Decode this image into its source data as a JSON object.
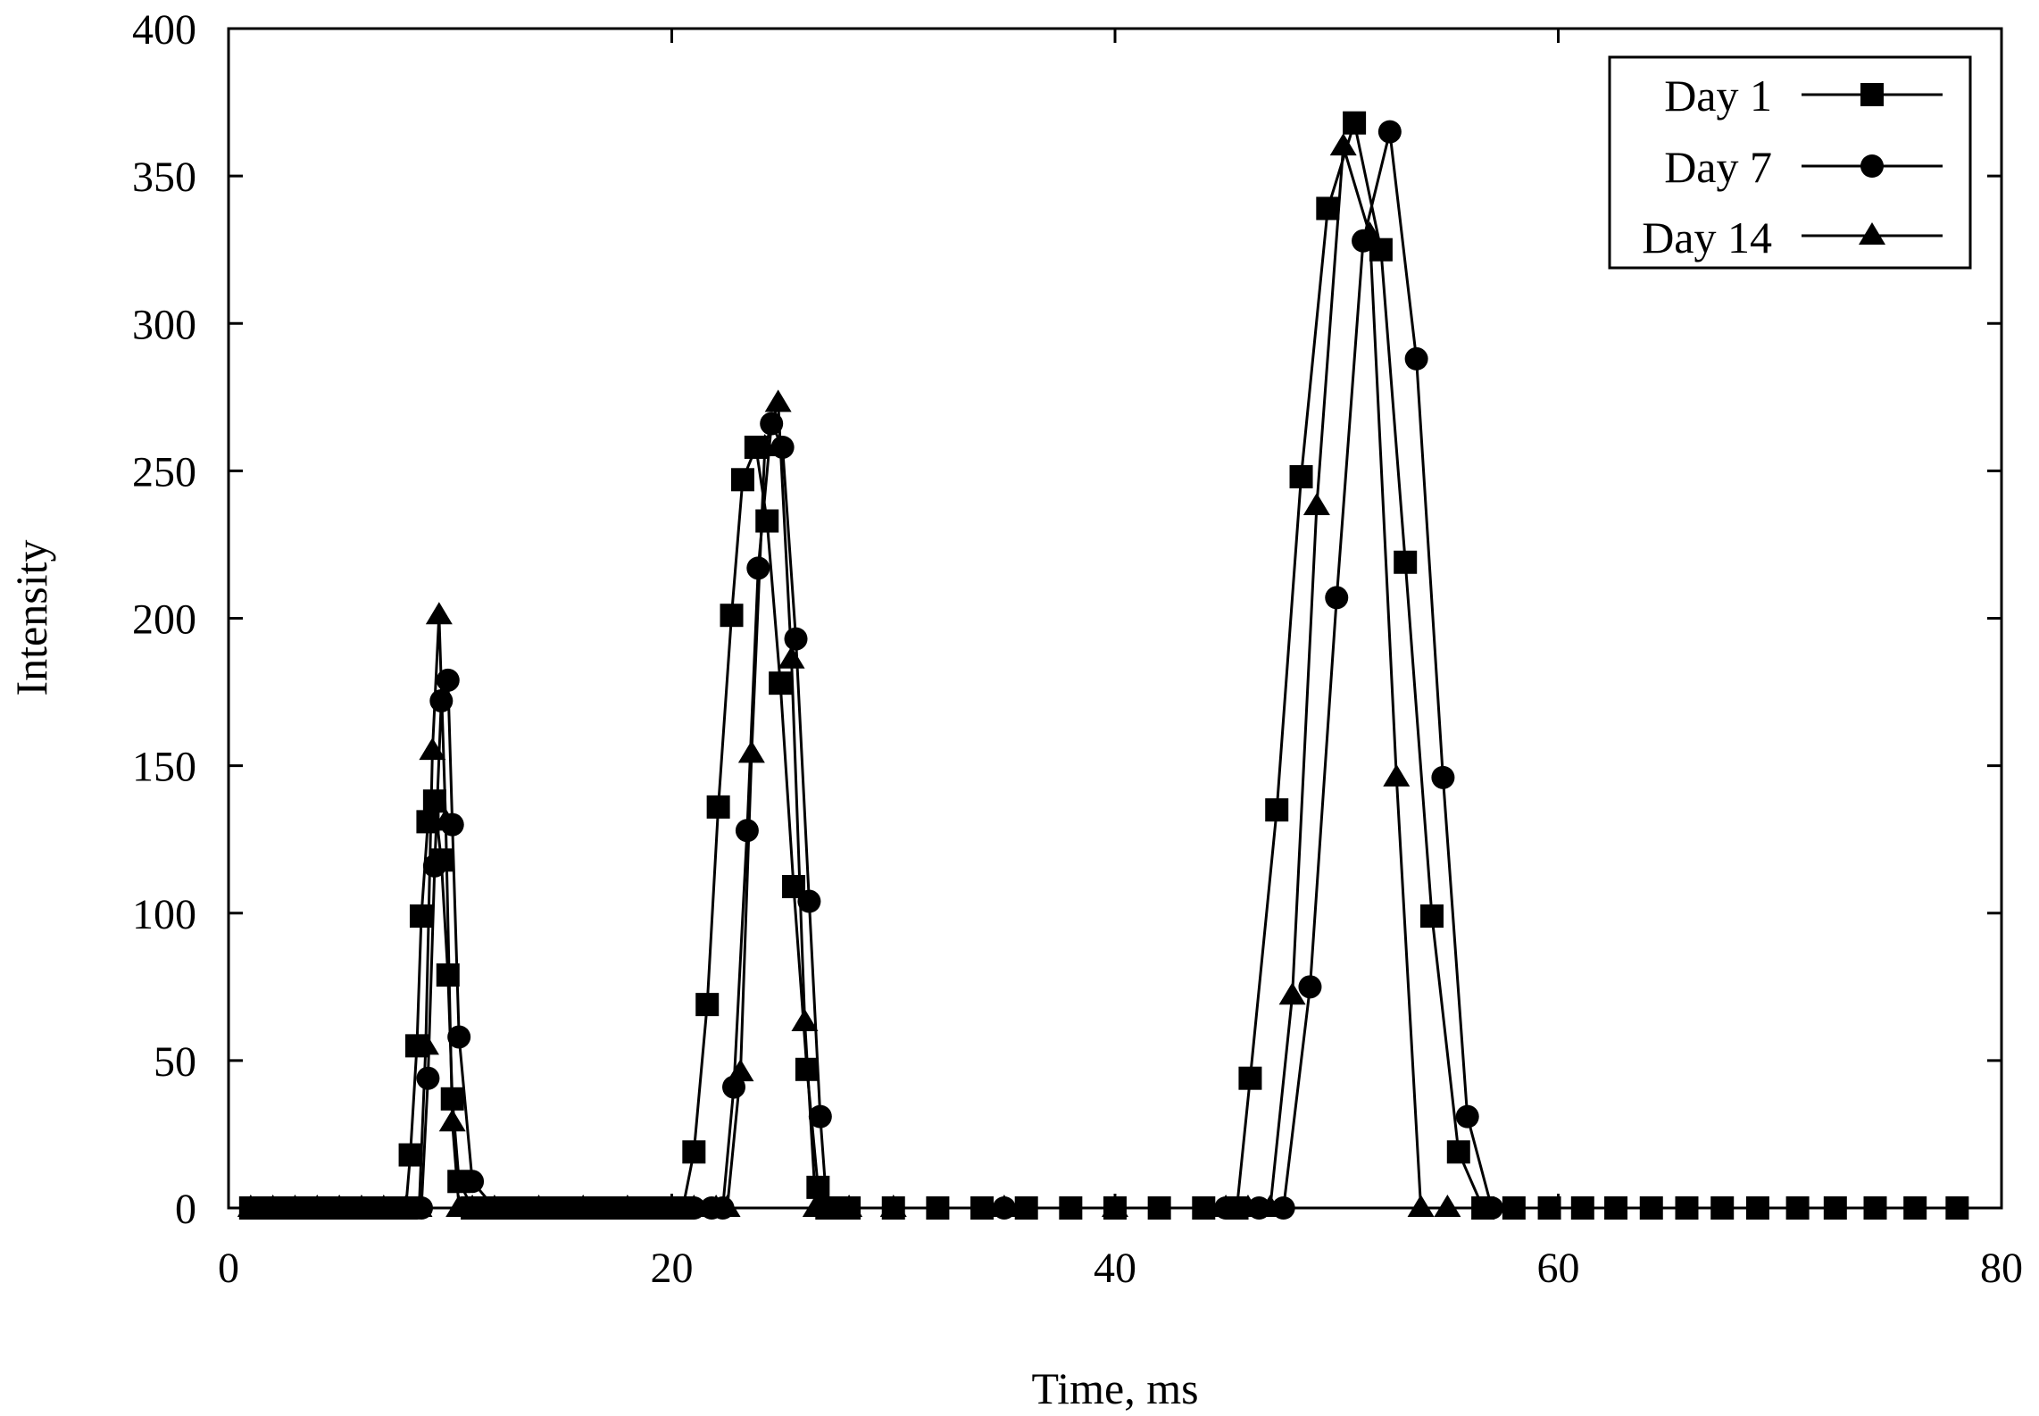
{
  "chart_data": {
    "type": "line",
    "title": "",
    "xlabel": "Time, ms",
    "ylabel": "Intensity",
    "xlim": [
      0,
      80
    ],
    "ylim": [
      0,
      400
    ],
    "xticks": [
      0,
      20,
      40,
      60,
      80
    ],
    "yticks": [
      0,
      50,
      100,
      150,
      200,
      250,
      300,
      350,
      400
    ],
    "grid": false,
    "legend_position": "top-right",
    "series": [
      {
        "name": "Day 1",
        "marker": "square",
        "x": [
          1.0,
          1.5,
          2.0,
          2.5,
          3.0,
          3.5,
          4.0,
          4.5,
          5.0,
          5.5,
          6.0,
          6.5,
          7.0,
          7.5,
          8.0,
          8.2,
          8.5,
          8.7,
          9.0,
          9.3,
          9.6,
          9.9,
          10.1,
          10.4,
          11.0,
          12.0,
          13.0,
          14.0,
          15.0,
          16.0,
          17.0,
          18.0,
          19.0,
          20.0,
          20.5,
          21.0,
          21.6,
          22.1,
          22.7,
          23.2,
          23.8,
          24.3,
          24.9,
          25.5,
          26.1,
          26.6,
          27.0,
          28.0,
          30.0,
          32.0,
          34.0,
          36.0,
          38.0,
          40.0,
          42.0,
          44.0,
          45.5,
          46.1,
          47.3,
          48.4,
          49.6,
          50.8,
          52.0,
          53.1,
          54.3,
          55.5,
          56.6,
          58.0,
          59.6,
          61.1,
          62.6,
          64.2,
          65.8,
          67.4,
          69.0,
          70.8,
          72.5,
          74.3,
          76.1,
          78.0
        ],
        "y": [
          0,
          0,
          0,
          0,
          0,
          0,
          0,
          0,
          0,
          0,
          0,
          0,
          0,
          0,
          0,
          18,
          55,
          99,
          131,
          138,
          118,
          79,
          37,
          9,
          0,
          0,
          0,
          0,
          0,
          0,
          0,
          0,
          0,
          0,
          0,
          19,
          69,
          136,
          201,
          247,
          258,
          233,
          178,
          109,
          47,
          7,
          0,
          0,
          0,
          0,
          0,
          0,
          0,
          0,
          0,
          0,
          0,
          44,
          135,
          248,
          339,
          368,
          325,
          219,
          99,
          19,
          0,
          0,
          0,
          0,
          0,
          0,
          0,
          0,
          0,
          0,
          0,
          0,
          0,
          0
        ]
      },
      {
        "name": "Day 7",
        "marker": "circle",
        "x": [
          1.0,
          2.0,
          3.0,
          4.0,
          5.0,
          6.0,
          7.0,
          8.0,
          8.5,
          8.7,
          9.0,
          9.3,
          9.6,
          9.9,
          10.1,
          10.4,
          11.0,
          12.0,
          14.0,
          16.0,
          18.0,
          20.0,
          21.0,
          21.8,
          22.3,
          22.8,
          23.4,
          23.9,
          24.5,
          25.0,
          25.6,
          26.2,
          26.7,
          27.0,
          28.0,
          30.0,
          35.0,
          40.0,
          45.0,
          46.5,
          47.6,
          48.8,
          50.0,
          51.2,
          52.4,
          53.6,
          54.8,
          55.9,
          57.0
        ],
        "y": [
          0,
          0,
          0,
          0,
          0,
          0,
          0,
          0,
          0,
          0,
          44,
          116,
          172,
          179,
          130,
          58,
          9,
          0,
          0,
          0,
          0,
          0,
          0,
          0,
          0,
          41,
          128,
          217,
          266,
          258,
          193,
          104,
          31,
          0,
          0,
          0,
          0,
          0,
          0,
          0,
          0,
          75,
          207,
          328,
          365,
          288,
          146,
          31,
          0
        ]
      },
      {
        "name": "Day 14",
        "marker": "triangle",
        "x": [
          1.0,
          2.0,
          3.0,
          4.0,
          5.0,
          6.0,
          7.0,
          8.0,
          8.6,
          8.9,
          9.2,
          9.5,
          9.8,
          10.1,
          10.4,
          11.0,
          12.0,
          14.0,
          16.0,
          18.0,
          20.0,
          21.0,
          22.0,
          22.5,
          23.1,
          23.6,
          24.2,
          24.8,
          25.4,
          26.0,
          26.5,
          27.0,
          28.0,
          30.0,
          35.0,
          40.0,
          45.0,
          46.0,
          47.0,
          48.0,
          49.1,
          50.3,
          51.5,
          52.7,
          53.8,
          55.0
        ],
        "y": [
          0,
          0,
          0,
          0,
          0,
          0,
          0,
          0,
          0,
          55,
          155,
          201,
          131,
          29,
          0,
          0,
          0,
          0,
          0,
          0,
          0,
          0,
          0,
          0,
          46,
          154,
          258,
          273,
          186,
          63,
          0,
          0,
          0,
          0,
          0,
          0,
          0,
          0,
          0,
          72,
          238,
          360,
          330,
          146,
          0,
          0
        ]
      }
    ]
  }
}
